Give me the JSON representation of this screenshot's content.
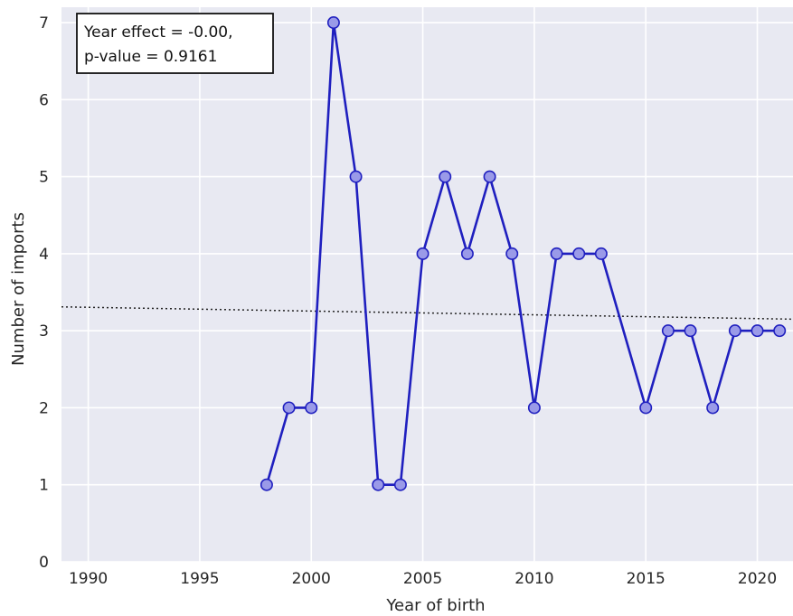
{
  "chart_data": {
    "type": "line",
    "title": "",
    "xlabel": "Year of birth",
    "ylabel": "Number of imports",
    "xlim": [
      1988.8,
      2021.6
    ],
    "ylim": [
      0,
      7.2
    ],
    "xticks": [
      "1990",
      "1995",
      "2000",
      "2005",
      "2010",
      "2015",
      "2020"
    ],
    "yticks": [
      "0",
      "1",
      "2",
      "3",
      "4",
      "5",
      "6",
      "7"
    ],
    "grid": true,
    "series": [
      {
        "x": [
          1998,
          1999,
          2000,
          2001,
          2002,
          2003,
          2004,
          2005,
          2006,
          2007,
          2008,
          2009,
          2010,
          2011,
          2012,
          2013,
          2015,
          2016,
          2017,
          2018,
          2019,
          2020,
          2021
        ],
        "values": [
          1,
          2,
          2,
          7,
          5,
          1,
          1,
          4,
          5,
          4,
          5,
          4,
          2,
          4,
          4,
          4,
          2,
          3,
          3,
          2,
          3,
          3,
          3
        ],
        "color": "#1f1fbf",
        "marker_fill": "#9a9ae8"
      }
    ],
    "trend_line": {
      "style": "dotted",
      "x": [
        1988.8,
        2021.6
      ],
      "y": [
        3.31,
        3.15
      ]
    },
    "annotation": {
      "lines": [
        "Year effect = -0.00,",
        "p-value = 0.9161"
      ],
      "placement": "top-left"
    },
    "colors": {
      "plot_background": "#e8e9f2",
      "grid": "#ffffff",
      "line": "#1f1fbf",
      "marker_fill": "#9a9ae8"
    }
  }
}
